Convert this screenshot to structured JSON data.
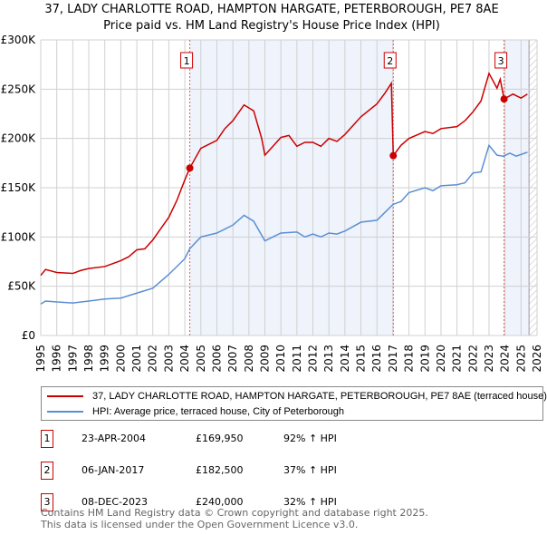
{
  "title": "37, LADY CHARLOTTE ROAD, HAMPTON HARGATE, PETERBOROUGH, PE7 8AE",
  "subtitle": "Price paid vs. HM Land Registry's House Price Index (HPI)",
  "chart_data": {
    "type": "line",
    "title": "37, LADY CHARLOTTE ROAD, HAMPTON HARGATE, PETERBOROUGH, PE7 8AE",
    "xlim": [
      1995,
      2026
    ],
    "ylim": [
      0,
      300000
    ],
    "x_ticks": [
      "1995",
      "1996",
      "1997",
      "1998",
      "1999",
      "2000",
      "2001",
      "2002",
      "2003",
      "2004",
      "2005",
      "2006",
      "2007",
      "2008",
      "2009",
      "2010",
      "2011",
      "2012",
      "2013",
      "2014",
      "2015",
      "2016",
      "2017",
      "2018",
      "2019",
      "2020",
      "2021",
      "2022",
      "2023",
      "2024",
      "2025",
      "2026"
    ],
    "y_ticks": [
      {
        "v": 0,
        "label": "£0"
      },
      {
        "v": 50000,
        "label": "£50K"
      },
      {
        "v": 100000,
        "label": "£100K"
      },
      {
        "v": 150000,
        "label": "£150K"
      },
      {
        "v": 200000,
        "label": "£200K"
      },
      {
        "v": 250000,
        "label": "£250K"
      },
      {
        "v": 300000,
        "label": "£300K"
      }
    ],
    "series": [
      {
        "name": "37, LADY CHARLOTTE ROAD, HAMPTON HARGATE, PETERBOROUGH, PE7 8AE (terraced house)",
        "color": "#cc0000",
        "x": [
          1995,
          1995.3,
          1996,
          1997,
          1997.5,
          1998,
          1999,
          2000,
          2000.5,
          2001,
          2001.5,
          2002,
          2003,
          2003.5,
          2004,
          2004.31,
          2005,
          2006,
          2006.5,
          2007,
          2007.7,
          2008.3,
          2008.8,
          2009,
          2009.5,
          2010,
          2010.5,
          2011,
          2011.5,
          2012,
          2012.5,
          2013,
          2013.5,
          2014,
          2014.5,
          2015,
          2016,
          2016.5,
          2016.9,
          2017.02,
          2017.5,
          2018,
          2019,
          2019.5,
          2020,
          2021,
          2021.5,
          2022,
          2022.5,
          2023,
          2023.5,
          2023.7,
          2023.94,
          2024.5,
          2025,
          2025.4
        ],
        "values": [
          61000,
          67000,
          64000,
          63000,
          66000,
          68000,
          70000,
          76000,
          80000,
          87000,
          88000,
          97000,
          120000,
          137000,
          158000,
          169950,
          190000,
          198000,
          210000,
          218000,
          234000,
          228000,
          200000,
          183000,
          192000,
          201000,
          203000,
          192000,
          196000,
          196000,
          192000,
          200000,
          197000,
          204000,
          213000,
          222000,
          235000,
          246000,
          256000,
          182500,
          193000,
          200000,
          207000,
          205000,
          210000,
          212000,
          218000,
          227000,
          238000,
          266000,
          251000,
          260000,
          240000,
          245000,
          241000,
          245000
        ]
      },
      {
        "name": "HPI: Average price, terraced house, City of Peterborough",
        "color": "#5b8fd4",
        "x": [
          1995,
          1995.3,
          1996,
          1997,
          1998,
          1999,
          2000,
          2001,
          2002,
          2003,
          2004,
          2004.3,
          2005,
          2006,
          2007,
          2007.7,
          2008.3,
          2009,
          2009.5,
          2010,
          2011,
          2011.5,
          2012,
          2012.5,
          2013,
          2013.5,
          2014,
          2015,
          2016,
          2016.5,
          2017,
          2017.5,
          2018,
          2019,
          2019.5,
          2020,
          2021,
          2021.5,
          2022,
          2022.5,
          2023,
          2023.5,
          2023.9,
          2024.3,
          2024.7,
          2025.4
        ],
        "values": [
          32000,
          35000,
          34000,
          33000,
          35000,
          37000,
          38000,
          43000,
          48000,
          62000,
          78000,
          88000,
          100000,
          104000,
          112000,
          122000,
          116000,
          96000,
          100000,
          104000,
          105000,
          100000,
          103000,
          100000,
          104000,
          103000,
          106000,
          115000,
          117000,
          125000,
          133000,
          136000,
          145000,
          150000,
          147000,
          152000,
          153000,
          155000,
          165000,
          166000,
          193000,
          183000,
          182000,
          185000,
          182000,
          186000
        ]
      }
    ],
    "sales": [
      {
        "n": "1",
        "x": 2004.31,
        "value": 169950
      },
      {
        "n": "2",
        "x": 2017.02,
        "value": 182500
      },
      {
        "n": "3",
        "x": 2023.94,
        "value": 240000
      }
    ],
    "shaded_ranges": [
      [
        2004.31,
        2017.02
      ],
      [
        2023.94,
        2025.5
      ]
    ],
    "hatched_from": 2025.5
  },
  "legend": {
    "red": "37, LADY CHARLOTTE ROAD, HAMPTON HARGATE, PETERBOROUGH, PE7 8AE (terraced house)",
    "blue": "HPI: Average price, terraced house, City of Peterborough"
  },
  "table": [
    {
      "n": "1",
      "date": "23-APR-2004",
      "price": "£169,950",
      "hpi": "92% ↑ HPI"
    },
    {
      "n": "2",
      "date": "06-JAN-2017",
      "price": "£182,500",
      "hpi": "37% ↑ HPI"
    },
    {
      "n": "3",
      "date": "08-DEC-2023",
      "price": "£240,000",
      "hpi": "32% ↑ HPI"
    }
  ],
  "footer": [
    "Contains HM Land Registry data © Crown copyright and database right 2025.",
    "This data is licensed under the Open Government Licence v3.0."
  ]
}
